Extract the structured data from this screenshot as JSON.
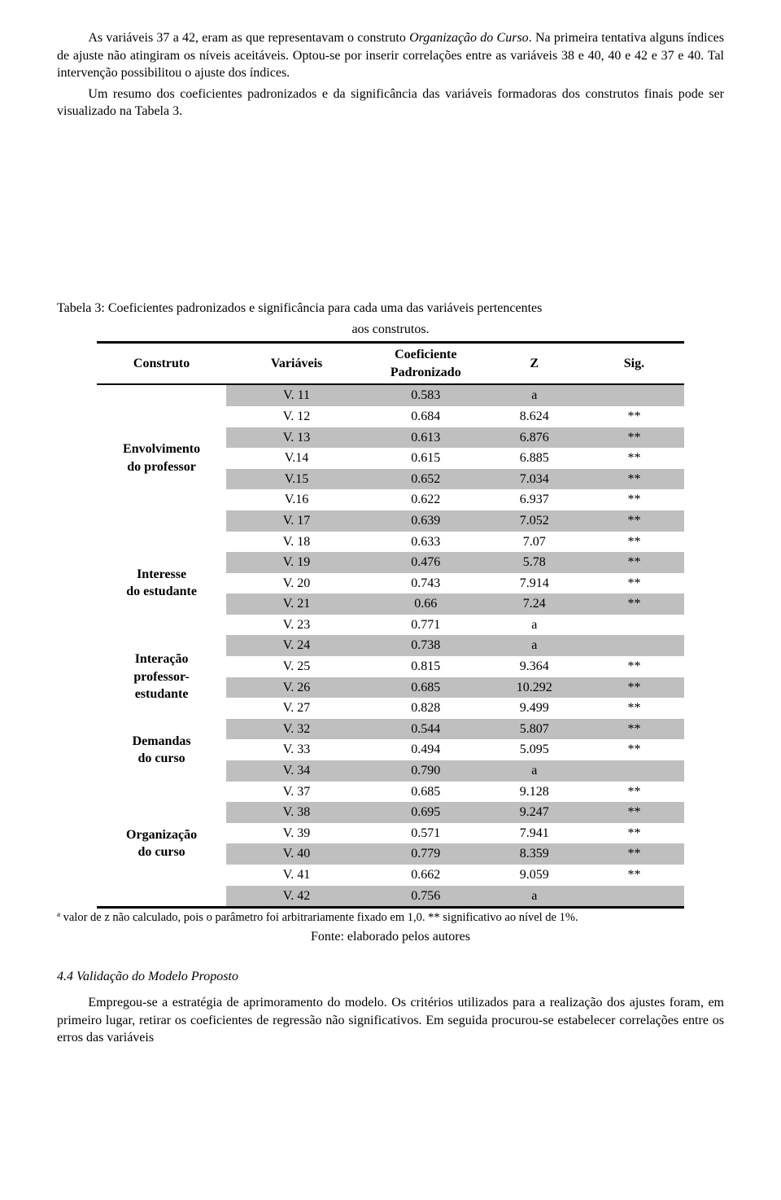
{
  "paragraphs": {
    "p1a": "As variáveis 37 a 42, eram as que representavam o construto ",
    "p1b": "Organização do Curso",
    "p1c": ". Na primeira tentativa alguns índices de ajuste não atingiram os níveis aceitáveis. Optou-se por inserir correlações entre as variáveis 38 e 40, 40 e 42 e 37 e 40. Tal intervenção possibilitou o ajuste dos índices.",
    "p2": "Um resumo dos coeficientes padronizados e da significância das variáveis formadoras dos construtos finais pode ser visualizado na Tabela 3."
  },
  "table": {
    "caption_line1": "Tabela 3: Coeficientes padronizados e significância para cada uma das variáveis pertencentes",
    "caption_line2": "aos construtos.",
    "headers": {
      "construto": "Construto",
      "variaveis": "Variáveis",
      "coef_l1": "Coeficiente",
      "coef_l2": "Padronizado",
      "z": "Z",
      "sig": "Sig."
    },
    "groups": [
      {
        "name_l1": "Envolvimento",
        "name_l2": "do professor",
        "rows": [
          {
            "var": "V. 11",
            "coef": "0.583",
            "z": "a",
            "sig": "",
            "shade": true
          },
          {
            "var": "V. 12",
            "coef": "0.684",
            "z": "8.624",
            "sig": "**",
            "shade": false
          },
          {
            "var": "V. 13",
            "coef": "0.613",
            "z": "6.876",
            "sig": "**",
            "shade": true
          },
          {
            "var": "V.14",
            "coef": "0.615",
            "z": "6.885",
            "sig": "**",
            "shade": false
          },
          {
            "var": "V.15",
            "coef": "0.652",
            "z": "7.034",
            "sig": "**",
            "shade": true
          },
          {
            "var": "V.16",
            "coef": "0.622",
            "z": "6.937",
            "sig": "**",
            "shade": false
          },
          {
            "var": "V. 17",
            "coef": "0.639",
            "z": "7.052",
            "sig": "**",
            "shade": true
          }
        ]
      },
      {
        "name_l1": "Interesse",
        "name_l2": "do estudante",
        "rows": [
          {
            "var": "V. 18",
            "coef": "0.633",
            "z": "7.07",
            "sig": "**",
            "shade": false
          },
          {
            "var": "V. 19",
            "coef": "0.476",
            "z": "5.78",
            "sig": "**",
            "shade": true
          },
          {
            "var": "V. 20",
            "coef": "0.743",
            "z": "7.914",
            "sig": "**",
            "shade": false
          },
          {
            "var": "V. 21",
            "coef": "0.66",
            "z": "7.24",
            "sig": "**",
            "shade": true
          },
          {
            "var": "V. 23",
            "coef": "0.771",
            "z": "a",
            "sig": "",
            "shade": false
          }
        ]
      },
      {
        "name_l1": "Interação",
        "name_l2": "professor-",
        "name_l3": "estudante",
        "rows": [
          {
            "var": "V. 24",
            "coef": "0.738",
            "z": "a",
            "sig": "",
            "shade": true
          },
          {
            "var": "V. 25",
            "coef": "0.815",
            "z": "9.364",
            "sig": "**",
            "shade": false
          },
          {
            "var": "V. 26",
            "coef": "0.685",
            "z": "10.292",
            "sig": "**",
            "shade": true
          },
          {
            "var": "V. 27",
            "coef": "0.828",
            "z": "9.499",
            "sig": "**",
            "shade": false
          }
        ]
      },
      {
        "name_l1": "Demandas",
        "name_l2": "do curso",
        "rows": [
          {
            "var": "V. 32",
            "coef": "0.544",
            "z": "5.807",
            "sig": "**",
            "shade": true
          },
          {
            "var": "V. 33",
            "coef": "0.494",
            "z": "5.095",
            "sig": "**",
            "shade": false
          },
          {
            "var": "V. 34",
            "coef": "0.790",
            "z": "a",
            "sig": "",
            "shade": true
          }
        ]
      },
      {
        "name_l1": "Organização",
        "name_l2": "do curso",
        "rows": [
          {
            "var": "V. 37",
            "coef": "0.685",
            "z": "9.128",
            "sig": "**",
            "shade": false
          },
          {
            "var": "V. 38",
            "coef": "0.695",
            "z": "9.247",
            "sig": "**",
            "shade": true
          },
          {
            "var": "V. 39",
            "coef": "0.571",
            "z": "7.941",
            "sig": "**",
            "shade": false
          },
          {
            "var": "V. 40",
            "coef": "0.779",
            "z": "8.359",
            "sig": "**",
            "shade": true
          },
          {
            "var": "V. 41",
            "coef": "0.662",
            "z": "9.059",
            "sig": "**",
            "shade": false
          },
          {
            "var": "V. 42",
            "coef": "0.756",
            "z": "a",
            "sig": "",
            "shade": true
          }
        ]
      }
    ],
    "footnote": "ª valor de z não calculado, pois o parâmetro foi arbitrariamente fixado em 1,0. ** significativo ao nível de 1%.",
    "source": "Fonte: elaborado pelos autores"
  },
  "section_heading": "4.4 Validação do Modelo Proposto",
  "p3": "Empregou-se a estratégia de aprimoramento do modelo. Os critérios utilizados para a realização dos ajustes foram, em primeiro lugar, retirar os coeficientes de regressão não significativos. Em seguida procurou-se estabelecer correlações entre os erros das variáveis",
  "colors": {
    "shade": "#bfbfbf",
    "text": "#000000",
    "bg": "#ffffff"
  }
}
